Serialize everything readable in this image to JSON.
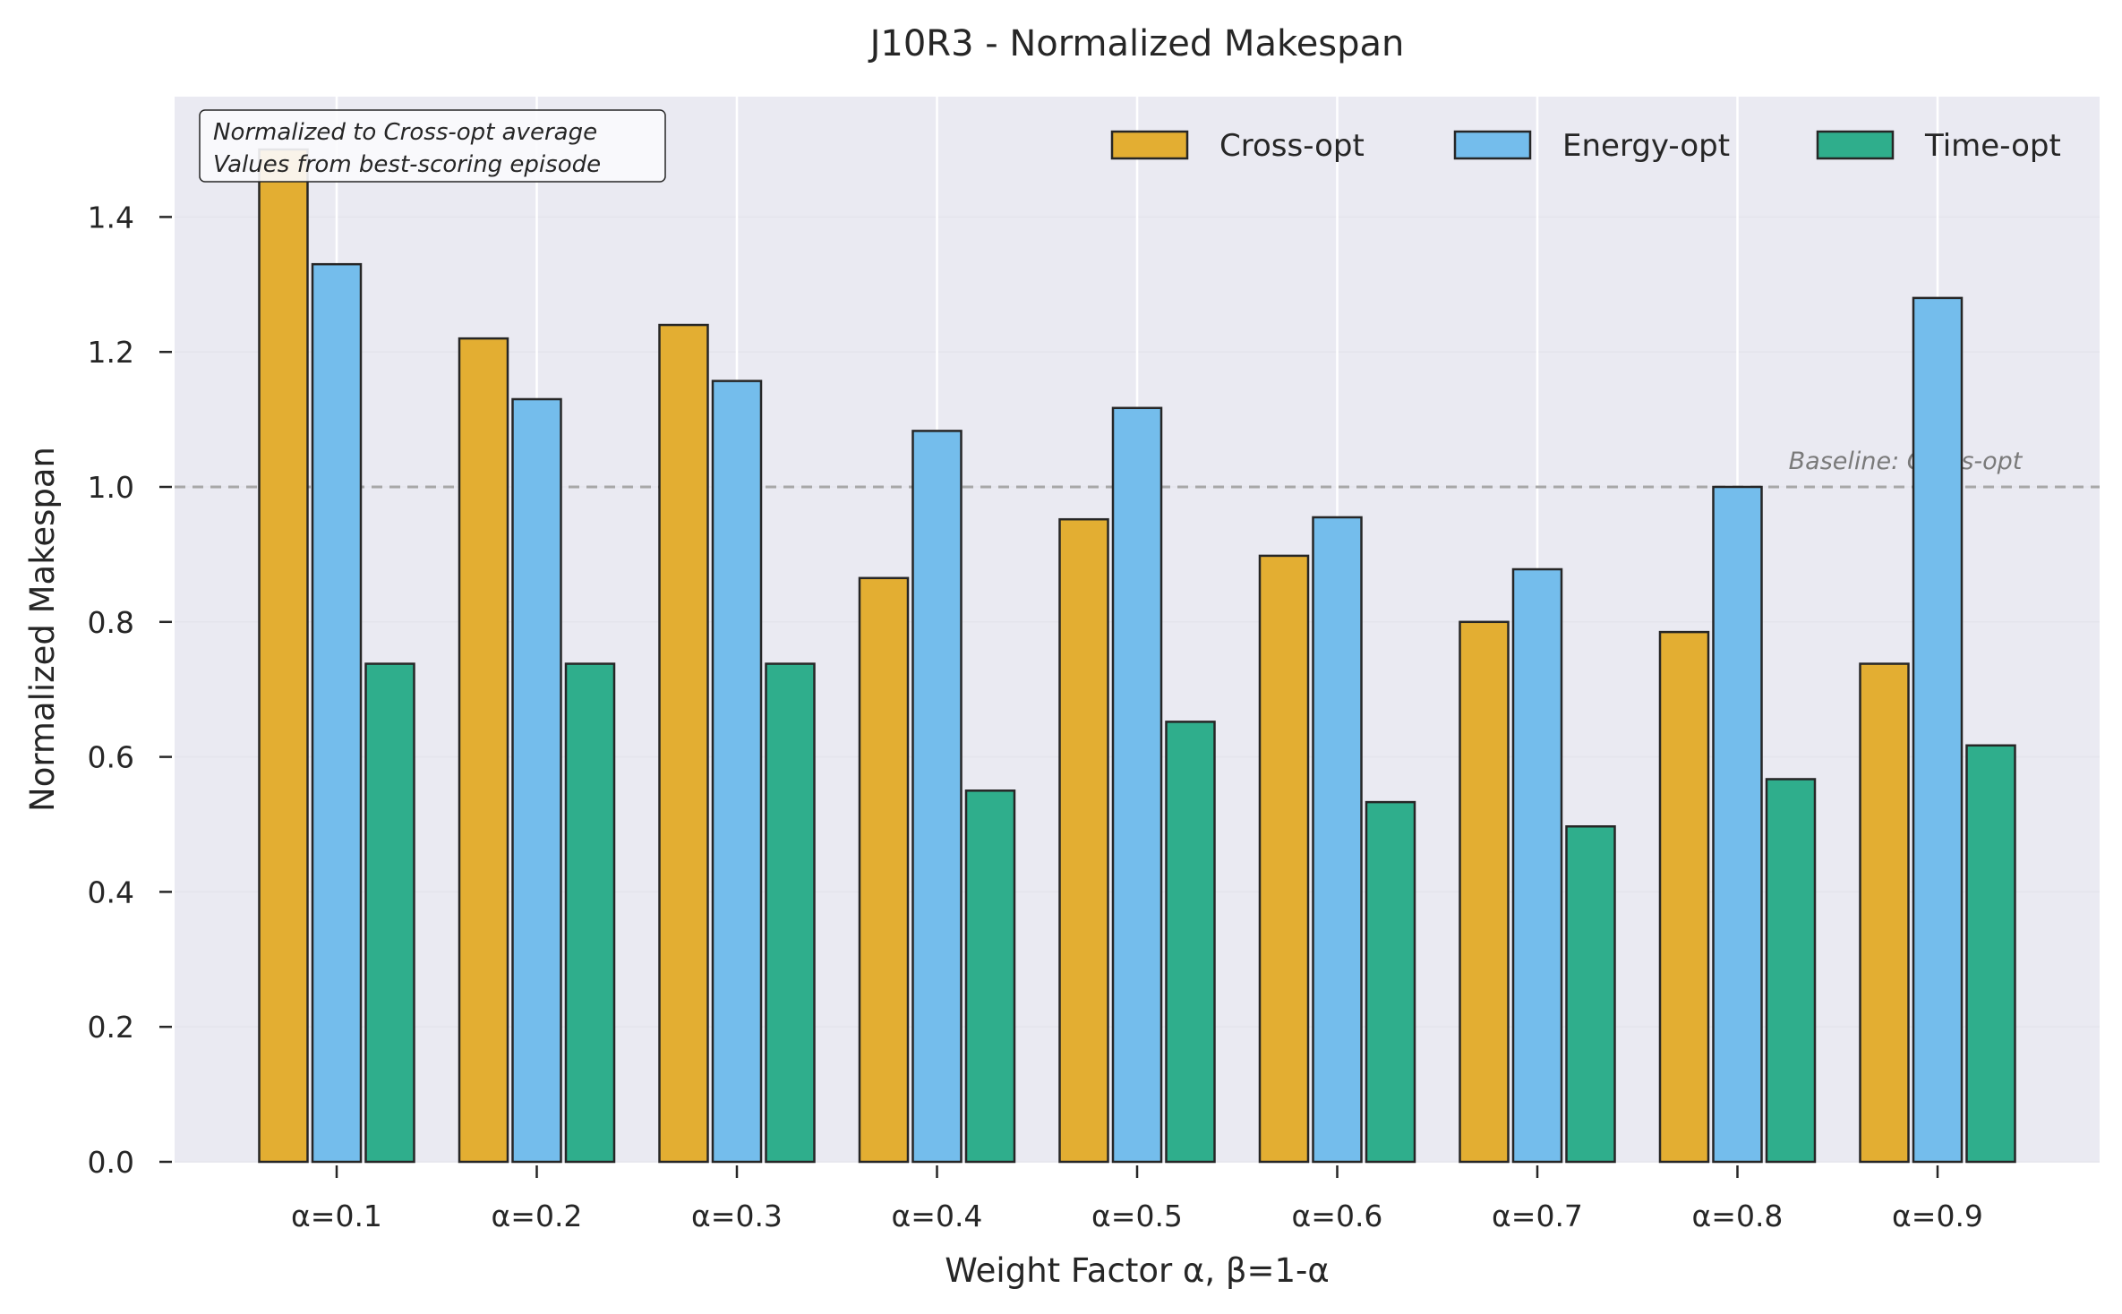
{
  "chart_data": {
    "type": "bar",
    "title": "J10R3 - Normalized Makespan",
    "xlabel": "Weight Factor α, β=1-α",
    "ylabel": "Normalized Makespan",
    "categories": [
      "α=0.1",
      "α=0.2",
      "α=0.3",
      "α=0.4",
      "α=0.5",
      "α=0.6",
      "α=0.7",
      "α=0.8",
      "α=0.9"
    ],
    "series": [
      {
        "name": "Cross-opt",
        "color": "#e3ae32",
        "values": [
          1.5,
          1.22,
          1.24,
          0.865,
          0.952,
          0.898,
          0.8,
          0.785,
          0.738
        ]
      },
      {
        "name": "Energy-opt",
        "color": "#74bdec",
        "values": [
          1.33,
          1.13,
          1.157,
          1.083,
          1.117,
          0.955,
          0.878,
          1.0,
          1.28
        ]
      },
      {
        "name": "Time-opt",
        "color": "#2fae8c",
        "values": [
          0.738,
          0.738,
          0.738,
          0.55,
          0.652,
          0.533,
          0.497,
          0.567,
          0.617
        ]
      }
    ],
    "ylim": [
      0,
      1.58
    ],
    "yticks": [
      0.0,
      0.2,
      0.4,
      0.6,
      0.8,
      1.0,
      1.2,
      1.4
    ],
    "ytick_labels": [
      "0.0",
      "0.2",
      "0.4",
      "0.6",
      "0.8",
      "1.0",
      "1.2",
      "1.4"
    ],
    "grid": true,
    "legend_position": "top-right",
    "baseline": {
      "value": 1.0,
      "label": "Baseline: Cross-opt"
    },
    "annotation": [
      "Normalized to Cross-opt average",
      "Values from best-scoring episode"
    ]
  }
}
